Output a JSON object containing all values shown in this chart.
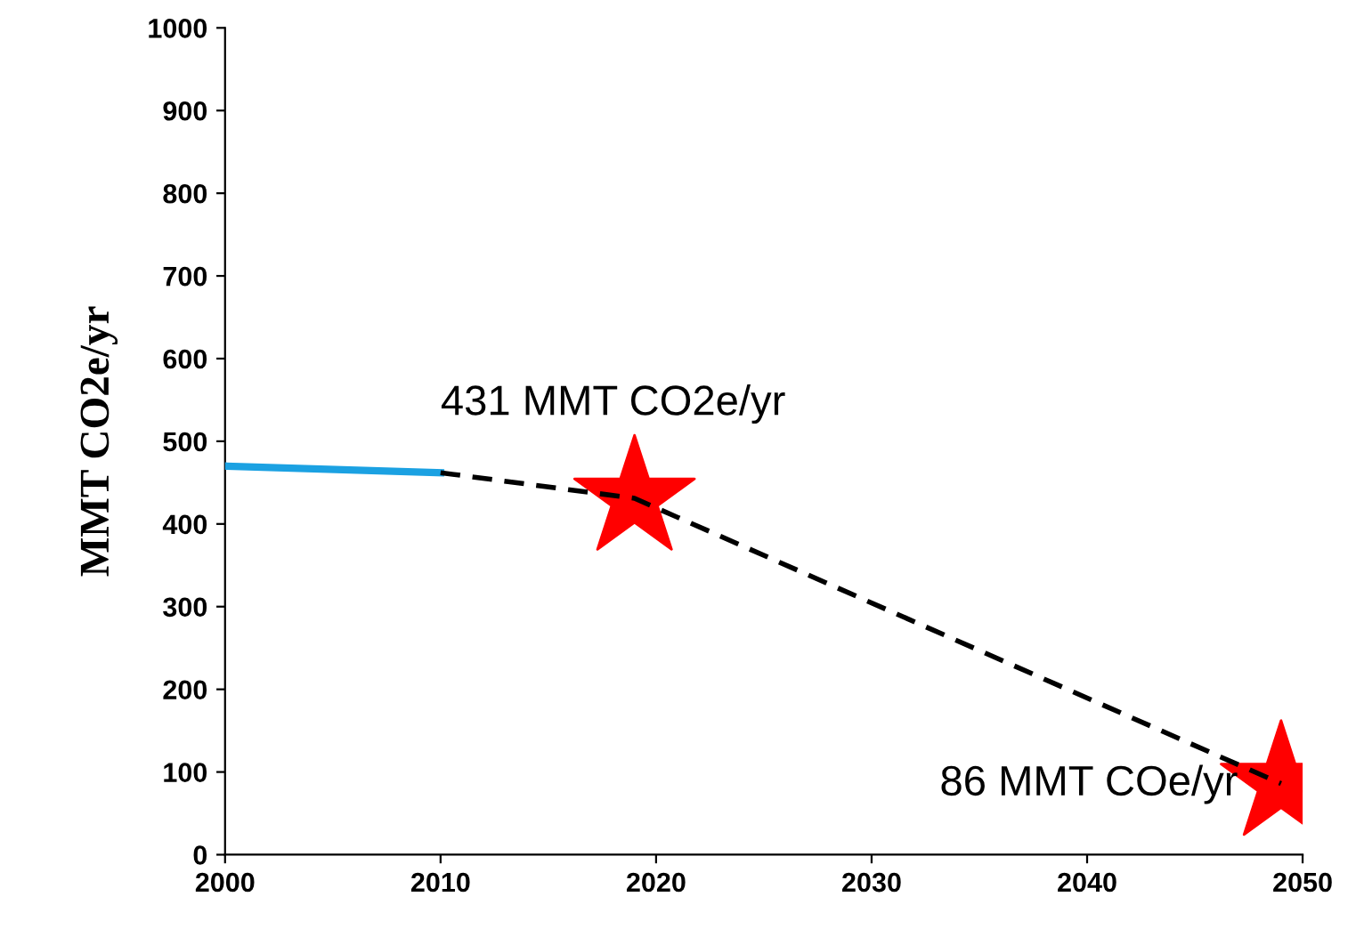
{
  "chart_data": {
    "type": "line",
    "ylabel": "MMT CO2e/yr",
    "xlim": [
      2000,
      2050
    ],
    "xticks": [
      2000,
      2010,
      2020,
      2030,
      2040,
      2050
    ],
    "ylim": [
      0,
      1000
    ],
    "yticks": [
      0,
      100,
      200,
      300,
      400,
      500,
      600,
      700,
      800,
      900,
      1000
    ],
    "grid": false,
    "legend": false,
    "series": [
      {
        "color": "#1ba1e2",
        "line_style": "solid",
        "marker": "none",
        "x": [
          2000,
          2010
        ],
        "values": [
          470,
          462
        ]
      },
      {
        "type": "line",
        "color": "#000000",
        "line_style": "dashed",
        "marker": "none",
        "x": [
          2010,
          2019,
          2049
        ],
        "values": [
          462,
          431,
          86
        ]
      },
      {
        "type": "scatter",
        "color": "#ff0000",
        "marker": "star",
        "x": [
          2019,
          2049
        ],
        "values": [
          431,
          86
        ]
      }
    ],
    "annotations": [
      "431 MMT CO2e/yr",
      "86 MMT COe/yr"
    ]
  }
}
